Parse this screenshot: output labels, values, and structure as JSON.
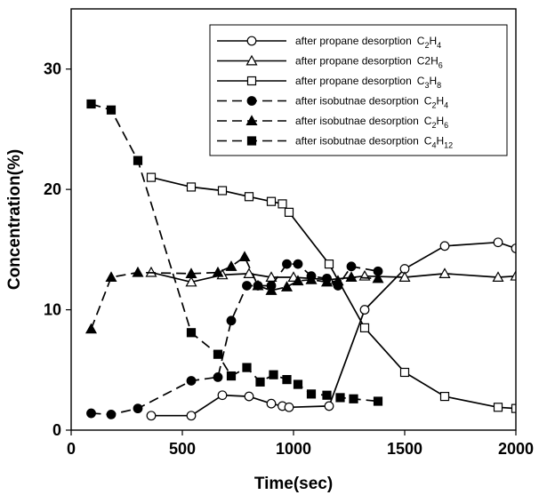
{
  "chart_data": {
    "type": "line",
    "title": "",
    "xlabel": "Time(sec)",
    "ylabel": "Concentration(%)",
    "xlim": [
      0,
      2000
    ],
    "ylim": [
      0,
      35
    ],
    "xticks": [
      0,
      500,
      1000,
      1500,
      2000
    ],
    "yticks": [
      0,
      10,
      20,
      30
    ],
    "grid": false,
    "legend_position": "top-right",
    "series": [
      {
        "label_prefix": "after propane desorption",
        "species": "C",
        "sub1": "2",
        "mid": "H",
        "sub2": "4",
        "marker": "circle-open",
        "dash": "solid",
        "x": [
          360,
          540,
          680,
          800,
          900,
          950,
          980,
          1160,
          1320,
          1500,
          1680,
          1920,
          2000
        ],
        "y": [
          1.2,
          1.2,
          2.9,
          2.8,
          2.2,
          2.0,
          1.9,
          2.0,
          10.0,
          13.4,
          15.3,
          15.6,
          15.1
        ]
      },
      {
        "label_prefix": "after propane desorption",
        "species": "C2H",
        "sub1": "",
        "mid": "",
        "sub2": "6",
        "marker": "triangle-open",
        "dash": "solid",
        "x": [
          360,
          540,
          680,
          800,
          900,
          1000,
          1160,
          1320,
          1500,
          1680,
          1920,
          2000
        ],
        "y": [
          13.1,
          12.3,
          12.9,
          13.0,
          12.7,
          12.7,
          12.5,
          12.8,
          12.7,
          13.0,
          12.7,
          12.8
        ]
      },
      {
        "label_prefix": "after propane desorption",
        "species": "C",
        "sub1": "3",
        "mid": "H",
        "sub2": "8",
        "marker": "square-open",
        "dash": "solid",
        "x": [
          360,
          540,
          680,
          800,
          900,
          950,
          980,
          1160,
          1320,
          1500,
          1680,
          1920,
          2000
        ],
        "y": [
          21.0,
          20.2,
          19.9,
          19.4,
          19.0,
          18.8,
          18.1,
          13.8,
          8.5,
          4.8,
          2.8,
          1.9,
          1.8
        ]
      },
      {
        "label_prefix": "after isobutnae desorption",
        "species": "C",
        "sub1": "2",
        "mid": "H",
        "sub2": "4",
        "marker": "circle-filled",
        "dash": "dashed",
        "x": [
          90,
          180,
          300,
          540,
          660,
          720,
          790,
          840,
          900,
          970,
          1020,
          1080,
          1150,
          1200,
          1260,
          1380
        ],
        "y": [
          1.4,
          1.3,
          1.8,
          4.1,
          4.4,
          9.1,
          12.0,
          12.0,
          12.0,
          13.8,
          13.8,
          12.8,
          12.6,
          12.0,
          13.6,
          13.2
        ]
      },
      {
        "label_prefix": "after isobutnae desorption",
        "species": "C",
        "sub1": "2",
        "mid": "H",
        "sub2": "6",
        "marker": "triangle-filled",
        "dash": "dashed",
        "x": [
          90,
          180,
          300,
          540,
          660,
          720,
          780,
          840,
          900,
          970,
          1020,
          1080,
          1150,
          1200,
          1260,
          1380
        ],
        "y": [
          8.4,
          12.7,
          13.1,
          13.0,
          13.1,
          13.6,
          14.4,
          12.0,
          11.6,
          11.9,
          12.4,
          12.5,
          12.3,
          12.4,
          12.7,
          12.6
        ]
      },
      {
        "label_prefix": "after isobutnae desorption",
        "species": "C",
        "sub1": "4",
        "mid": "H",
        "sub2": "12",
        "marker": "square-filled",
        "dash": "dashed",
        "x": [
          90,
          180,
          300,
          540,
          660,
          720,
          790,
          850,
          910,
          970,
          1020,
          1080,
          1150,
          1210,
          1270,
          1380
        ],
        "y": [
          27.1,
          26.6,
          22.4,
          8.1,
          6.3,
          4.5,
          5.2,
          4.0,
          4.6,
          4.2,
          3.8,
          3.0,
          2.9,
          2.7,
          2.6,
          2.4
        ]
      }
    ]
  }
}
